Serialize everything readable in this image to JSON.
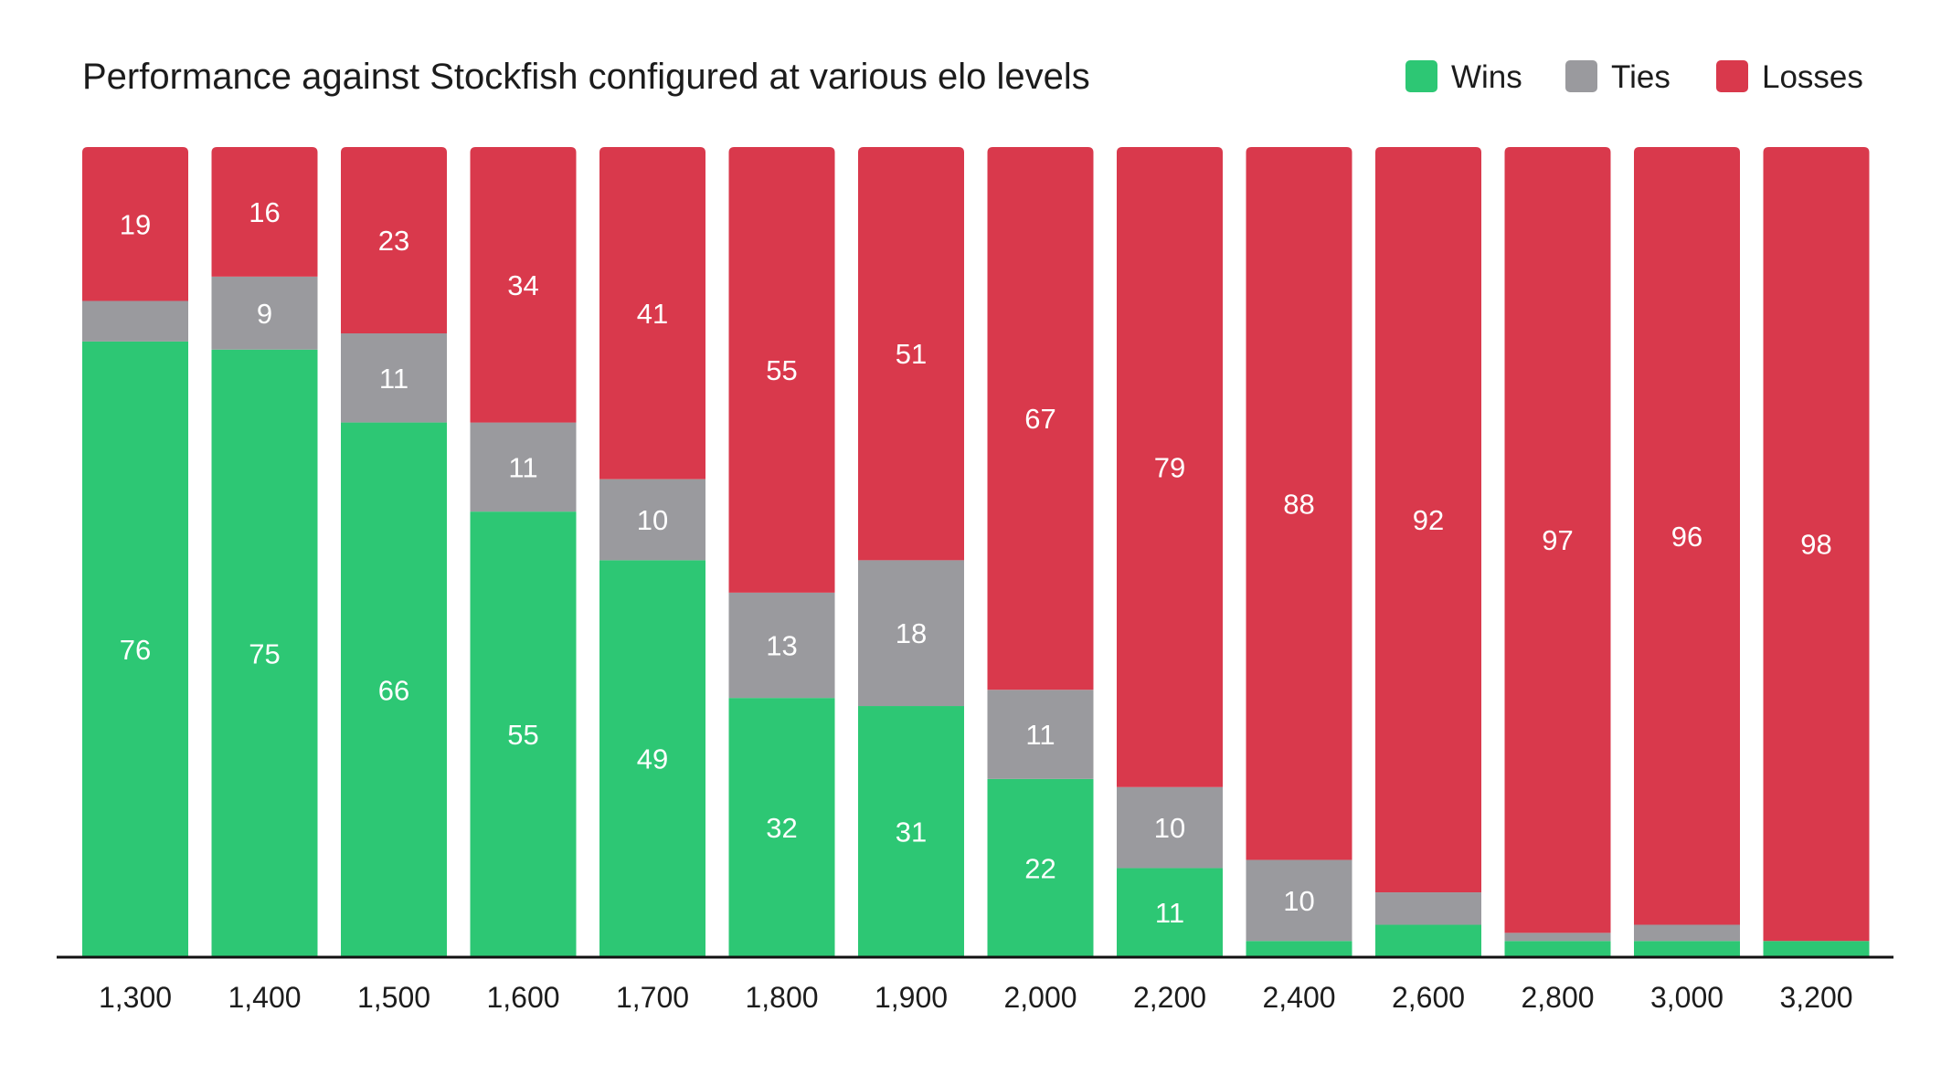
{
  "chart_data": {
    "type": "bar",
    "stacked": true,
    "title": "Performance against Stockfish configured at various elo levels",
    "xlabel": "",
    "ylabel": "",
    "ylim": [
      0,
      100
    ],
    "grid": false,
    "legend_position": "top-right",
    "categories": [
      "1,300",
      "1,400",
      "1,500",
      "1,600",
      "1,700",
      "1,800",
      "1,900",
      "2,000",
      "2,200",
      "2,400",
      "2,600",
      "2,800",
      "3,000",
      "3,200"
    ],
    "series": [
      {
        "name": "Wins",
        "color": "#2DC774",
        "values": [
          76,
          75,
          66,
          55,
          49,
          32,
          31,
          22,
          11,
          2,
          4,
          2,
          2,
          2
        ],
        "labels": [
          "76",
          "75",
          "66",
          "55",
          "49",
          "32",
          "31",
          "22",
          "11",
          "",
          "",
          "",
          "",
          ""
        ]
      },
      {
        "name": "Ties",
        "color": "#9A9A9E",
        "values": [
          5,
          9,
          11,
          11,
          10,
          13,
          18,
          11,
          10,
          10,
          4,
          1,
          2,
          0
        ],
        "labels": [
          "",
          "9",
          "11",
          "11",
          "10",
          "13",
          "18",
          "11",
          "10",
          "10",
          "",
          "",
          "",
          ""
        ]
      },
      {
        "name": "Losses",
        "color": "#D9394C",
        "values": [
          19,
          16,
          23,
          34,
          41,
          55,
          51,
          67,
          79,
          88,
          92,
          97,
          96,
          98
        ],
        "labels": [
          "19",
          "16",
          "23",
          "34",
          "41",
          "55",
          "51",
          "67",
          "79",
          "88",
          "92",
          "97",
          "96",
          "98"
        ]
      }
    ]
  }
}
